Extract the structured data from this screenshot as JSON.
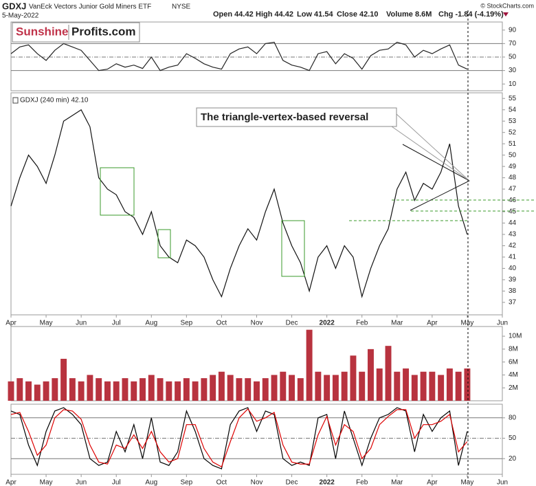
{
  "header": {
    "symbol": "GDXJ",
    "name": "VanEck Vectors Junior Gold Miners ETF",
    "exchange": "NYSE",
    "date": "5-May-2022",
    "open": "Open 44.42",
    "high": "High 44.42",
    "low": "Low 41.54",
    "close": "Close 42.10",
    "volume": "Volume 8.6M",
    "change": "Chg -1.84 (-4.19%)",
    "copyright": "© StockCharts.com",
    "logo_left": "Sunshine",
    "logo_right": "Profits.com"
  },
  "chart_data": [
    {
      "type": "line",
      "xlim": [
        0,
        14
      ],
      "ylim": [
        0,
        102
      ],
      "yticks": [
        10,
        30,
        50,
        70,
        90
      ],
      "reference_lines": [
        70,
        50,
        30
      ],
      "x": [
        0,
        0.25,
        0.5,
        0.75,
        1,
        1.25,
        1.5,
        1.75,
        2,
        2.25,
        2.5,
        2.75,
        3,
        3.25,
        3.5,
        3.75,
        4,
        4.25,
        4.5,
        4.75,
        5,
        5.25,
        5.5,
        5.75,
        6,
        6.25,
        6.5,
        6.75,
        7,
        7.25,
        7.5,
        7.75,
        8,
        8.25,
        8.5,
        8.75,
        9,
        9.25,
        9.5,
        9.75,
        10,
        10.25,
        10.5,
        10.75,
        11,
        11.25,
        11.5,
        11.75,
        12,
        12.25,
        12.5,
        12.75,
        13
      ],
      "series": [
        {
          "color": "#222222",
          "values": [
            55,
            65,
            68,
            55,
            45,
            60,
            70,
            65,
            60,
            45,
            30,
            32,
            40,
            35,
            38,
            33,
            50,
            30,
            35,
            38,
            55,
            48,
            40,
            35,
            32,
            55,
            62,
            65,
            55,
            70,
            72,
            45,
            38,
            35,
            30,
            55,
            58,
            40,
            55,
            48,
            32,
            52,
            60,
            62,
            72,
            68,
            50,
            60,
            55,
            62,
            68,
            38,
            32
          ]
        }
      ]
    },
    {
      "type": "line",
      "label": "GDXJ (240 min) 42.10",
      "annotation": "The triangle-vertex-based reversal",
      "xlim": [
        0,
        14
      ],
      "ylim": [
        35.9,
        55.5
      ],
      "yticks": [
        37,
        38,
        39,
        40,
        41,
        42,
        43,
        44,
        45,
        46,
        47,
        48,
        49,
        50,
        51,
        52,
        53,
        54,
        55
      ],
      "xticks": [
        {
          "value": 0,
          "label": "Apr"
        },
        {
          "value": 1,
          "label": "May"
        },
        {
          "value": 2,
          "label": "Jun"
        },
        {
          "value": 3,
          "label": "Jul"
        },
        {
          "value": 4,
          "label": "Aug"
        },
        {
          "value": 5,
          "label": "Sep"
        },
        {
          "value": 6,
          "label": "Oct"
        },
        {
          "value": 7,
          "label": "Nov"
        },
        {
          "value": 8,
          "label": "Dec"
        },
        {
          "value": 9,
          "label": "2022"
        },
        {
          "value": 10,
          "label": "Feb"
        },
        {
          "value": 11,
          "label": "Mar"
        },
        {
          "value": 12,
          "label": "Apr"
        },
        {
          "value": 13,
          "label": "May"
        },
        {
          "value": 14,
          "label": "Jun"
        }
      ],
      "x": [
        0,
        0.25,
        0.5,
        0.75,
        1,
        1.25,
        1.5,
        1.75,
        2,
        2.25,
        2.5,
        2.75,
        3,
        3.25,
        3.5,
        3.75,
        4,
        4.25,
        4.5,
        4.75,
        5,
        5.25,
        5.5,
        5.75,
        6,
        6.25,
        6.5,
        6.75,
        7,
        7.25,
        7.5,
        7.75,
        8,
        8.25,
        8.5,
        8.75,
        9,
        9.25,
        9.5,
        9.75,
        10,
        10.25,
        10.5,
        10.75,
        11,
        11.25,
        11.5,
        11.75,
        12,
        12.25,
        12.5,
        12.75,
        13
      ],
      "series": [
        {
          "color": "#111111",
          "values": [
            45.5,
            48,
            50,
            49,
            47.5,
            50,
            53,
            53.5,
            54,
            52.5,
            48,
            47,
            46.5,
            45,
            44.5,
            43,
            45,
            42,
            41,
            40.5,
            42.5,
            42,
            41,
            39,
            37.5,
            40,
            42,
            43.5,
            42.5,
            45,
            47,
            44,
            42,
            40.5,
            38,
            41,
            42,
            40,
            42,
            41,
            37.5,
            40,
            42,
            43.5,
            47,
            48.5,
            46,
            47.5,
            47,
            48.5,
            51,
            45.5,
            43
          ]
        }
      ]
    },
    {
      "type": "bar",
      "xlim": [
        0,
        14
      ],
      "ylim": [
        0,
        11.5
      ],
      "color": "#b8333f",
      "yticks": [
        {
          "value": 2,
          "label": "2M"
        },
        {
          "value": 4,
          "label": "4M"
        },
        {
          "value": 6,
          "label": "6M"
        },
        {
          "value": 8,
          "label": "8M"
        },
        {
          "value": 10,
          "label": "10M"
        }
      ],
      "x": [
        0,
        0.25,
        0.5,
        0.75,
        1,
        1.25,
        1.5,
        1.75,
        2,
        2.25,
        2.5,
        2.75,
        3,
        3.25,
        3.5,
        3.75,
        4,
        4.25,
        4.5,
        4.75,
        5,
        5.25,
        5.5,
        5.75,
        6,
        6.25,
        6.5,
        6.75,
        7,
        7.25,
        7.5,
        7.75,
        8,
        8.25,
        8.5,
        8.75,
        9,
        9.25,
        9.5,
        9.75,
        10,
        10.25,
        10.5,
        10.75,
        11,
        11.25,
        11.5,
        11.75,
        12,
        12.25,
        12.5,
        12.75,
        13
      ],
      "values": [
        3,
        3.5,
        3,
        2.5,
        3,
        3.5,
        6.5,
        3.5,
        3,
        4,
        3.5,
        3,
        3,
        3.5,
        3,
        3.5,
        4,
        3.5,
        3,
        3,
        3.5,
        3,
        3.5,
        4,
        4.5,
        4,
        3.5,
        3.5,
        3,
        3.5,
        4,
        4.5,
        4,
        3.5,
        11,
        4.5,
        4,
        4,
        4.5,
        7,
        4.5,
        8,
        5,
        8.5,
        4.5,
        5,
        4,
        4.5,
        4.5,
        4,
        5,
        4.5,
        5
      ]
    },
    {
      "type": "line",
      "xlim": [
        0,
        14
      ],
      "ylim": [
        -3,
        100
      ],
      "yticks": [
        20,
        50,
        80
      ],
      "reference_lines": [
        80,
        50,
        20
      ],
      "xticks": [
        {
          "value": 0,
          "label": "Apr"
        },
        {
          "value": 1,
          "label": "May"
        },
        {
          "value": 2,
          "label": "Jun"
        },
        {
          "value": 3,
          "label": "Jul"
        },
        {
          "value": 4,
          "label": "Aug"
        },
        {
          "value": 5,
          "label": "Sep"
        },
        {
          "value": 6,
          "label": "Oct"
        },
        {
          "value": 7,
          "label": "Nov"
        },
        {
          "value": 8,
          "label": "Dec"
        },
        {
          "value": 9,
          "label": "2022"
        },
        {
          "value": 10,
          "label": "Feb"
        },
        {
          "value": 11,
          "label": "Mar"
        },
        {
          "value": 12,
          "label": "Apr"
        },
        {
          "value": 13,
          "label": "May"
        },
        {
          "value": 14,
          "label": "Jun"
        }
      ],
      "x": [
        0,
        0.25,
        0.5,
        0.75,
        1,
        1.25,
        1.5,
        1.75,
        2,
        2.25,
        2.5,
        2.75,
        3,
        3.25,
        3.5,
        3.75,
        4,
        4.25,
        4.5,
        4.75,
        5,
        5.25,
        5.5,
        5.75,
        6,
        6.25,
        6.5,
        6.75,
        7,
        7.25,
        7.5,
        7.75,
        8,
        8.25,
        8.5,
        8.75,
        9,
        9.25,
        9.5,
        9.75,
        10,
        10.25,
        10.5,
        10.75,
        11,
        11.25,
        11.5,
        11.75,
        12,
        12.25,
        12.5,
        12.75,
        13
      ],
      "series": [
        {
          "color": "#000000",
          "values": [
            90,
            85,
            40,
            10,
            60,
            90,
            95,
            85,
            70,
            20,
            10,
            15,
            60,
            30,
            70,
            20,
            80,
            15,
            10,
            30,
            90,
            60,
            20,
            10,
            5,
            70,
            90,
            95,
            60,
            90,
            85,
            20,
            10,
            15,
            10,
            80,
            85,
            20,
            90,
            50,
            10,
            50,
            80,
            85,
            95,
            90,
            30,
            85,
            60,
            80,
            90,
            10,
            60
          ]
        },
        {
          "color": "#dd0000",
          "values": [
            85,
            88,
            60,
            25,
            40,
            80,
            92,
            90,
            78,
            40,
            15,
            12,
            40,
            35,
            55,
            35,
            60,
            30,
            15,
            20,
            70,
            70,
            35,
            15,
            8,
            45,
            80,
            93,
            75,
            80,
            88,
            40,
            15,
            12,
            12,
            55,
            82,
            40,
            70,
            60,
            20,
            35,
            70,
            82,
            92,
            92,
            50,
            70,
            70,
            75,
            85,
            30,
            45
          ]
        }
      ]
    }
  ]
}
